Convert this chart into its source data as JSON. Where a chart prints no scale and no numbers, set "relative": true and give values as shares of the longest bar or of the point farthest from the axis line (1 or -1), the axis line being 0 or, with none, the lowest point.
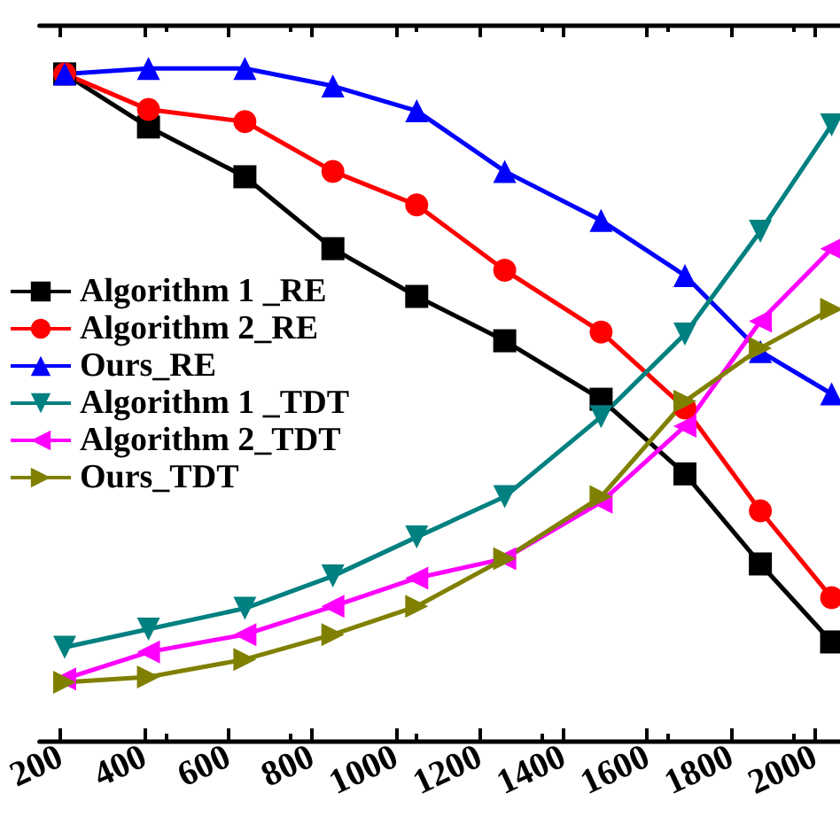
{
  "chart_data": {
    "type": "line",
    "relative": true,
    "legend": "left",
    "grid": false,
    "x": [
      210,
      410,
      640,
      850,
      1050,
      1260,
      1490,
      1690,
      1870,
      2040
    ],
    "xlim": [
      150,
      2060
    ],
    "xticks": [
      200,
      400,
      600,
      800,
      1000,
      1200,
      1400,
      1600,
      1800,
      2000
    ],
    "series": [
      {
        "name": "Algorithm 1 _RE",
        "color": "#000000",
        "marker": "square",
        "values": [
          0.992,
          0.913,
          0.839,
          0.732,
          0.661,
          0.595,
          0.508,
          0.397,
          0.263,
          0.147
        ]
      },
      {
        "name": "Algorithm 2_RE",
        "color": "#ff0000",
        "marker": "circle",
        "values": [
          0.992,
          0.939,
          0.921,
          0.847,
          0.797,
          0.7,
          0.608,
          0.495,
          0.342,
          0.213
        ]
      },
      {
        "name": "Ours_RE",
        "color": "#0000ff",
        "marker": "triangle",
        "values": [
          0.992,
          1,
          1,
          0.974,
          0.937,
          0.847,
          0.774,
          0.692,
          0.579,
          0.516
        ]
      },
      {
        "name": "Algorithm 1 _TDT",
        "color": "#008080",
        "marker": "triangle-down",
        "values": [
          0.139,
          0.166,
          0.197,
          0.245,
          0.303,
          0.363,
          0.482,
          0.605,
          0.758,
          0.916
        ]
      },
      {
        "name": "Algorithm 2_TDT",
        "color": "#ff00ff",
        "marker": "triangle-left",
        "values": [
          0.092,
          0.132,
          0.158,
          0.2,
          0.242,
          0.271,
          0.355,
          0.468,
          0.624,
          0.732
        ]
      },
      {
        "name": "Ours_TDT",
        "color": "#808000",
        "marker": "triangle-right",
        "values": [
          0.087,
          0.095,
          0.121,
          0.158,
          0.2,
          0.271,
          0.363,
          0.505,
          0.584,
          0.642
        ]
      }
    ]
  }
}
